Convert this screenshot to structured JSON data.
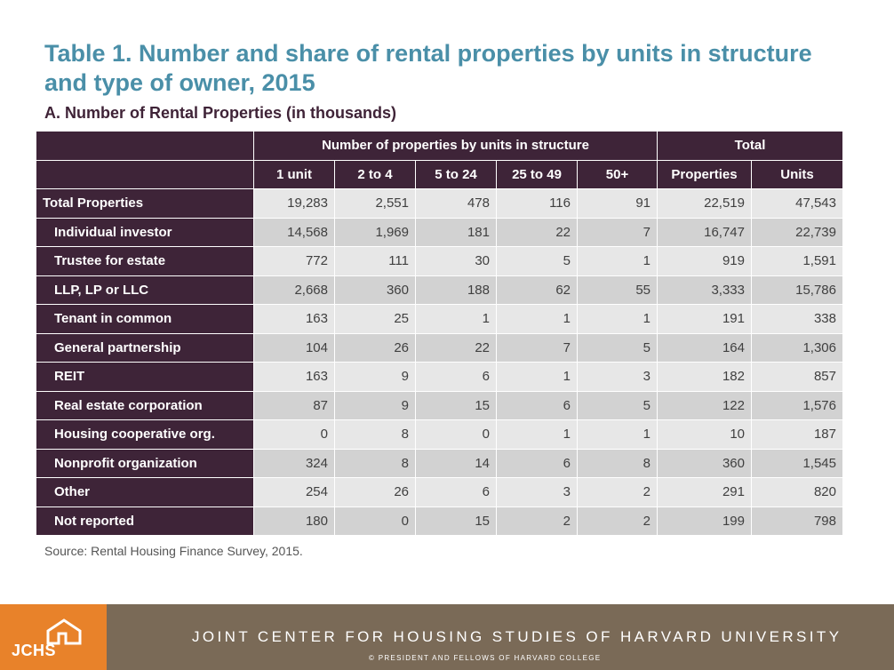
{
  "title": "Table 1. Number and share of rental properties by units in structure and type of owner, 2015",
  "subtitle": "A. Number of Rental Properties (in thousands)",
  "table": {
    "group_headers": {
      "units_in_structure": "Number of properties by units in structure",
      "total": "Total"
    },
    "columns": [
      "1 unit",
      "2 to 4",
      "5 to 24",
      "25 to 49",
      "50+",
      "Properties",
      "Units"
    ],
    "rows": [
      {
        "label": "Total Properties",
        "values": [
          "19,283",
          "2,551",
          "478",
          "116",
          "91",
          "22,519",
          "47,543"
        ]
      },
      {
        "label": "Individual investor",
        "values": [
          "14,568",
          "1,969",
          "181",
          "22",
          "7",
          "16,747",
          "22,739"
        ]
      },
      {
        "label": "Trustee for estate",
        "values": [
          "772",
          "111",
          "30",
          "5",
          "1",
          "919",
          "1,591"
        ]
      },
      {
        "label": "LLP, LP or LLC",
        "values": [
          "2,668",
          "360",
          "188",
          "62",
          "55",
          "3,333",
          "15,786"
        ]
      },
      {
        "label": "Tenant in common",
        "values": [
          "163",
          "25",
          "1",
          "1",
          "1",
          "191",
          "338"
        ]
      },
      {
        "label": "General partnership",
        "values": [
          "104",
          "26",
          "22",
          "7",
          "5",
          "164",
          "1,306"
        ]
      },
      {
        "label": "REIT",
        "values": [
          "163",
          "9",
          "6",
          "1",
          "3",
          "182",
          "857"
        ]
      },
      {
        "label": "Real estate corporation",
        "values": [
          "87",
          "9",
          "15",
          "6",
          "5",
          "122",
          "1,576"
        ]
      },
      {
        "label": "Housing cooperative org.",
        "values": [
          "0",
          "8",
          "0",
          "1",
          "1",
          "10",
          "187"
        ]
      },
      {
        "label": "Nonprofit organization",
        "values": [
          "324",
          "8",
          "14",
          "6",
          "8",
          "360",
          "1,545"
        ]
      },
      {
        "label": "Other",
        "values": [
          "254",
          "26",
          "6",
          "3",
          "2",
          "291",
          "820"
        ]
      },
      {
        "label": "Not reported",
        "values": [
          "180",
          "0",
          "15",
          "2",
          "2",
          "199",
          "798"
        ]
      }
    ]
  },
  "source": "Source: Rental Housing Finance Survey, 2015.",
  "footer": {
    "logo_text": "JCHS",
    "org_name": "JOINT CENTER FOR HOUSING STUDIES OF HARVARD UNIVERSITY",
    "copyright": "© PRESIDENT AND FELLOWS OF HARVARD COLLEGE"
  },
  "colors": {
    "title": "#4a8fa8",
    "header_bg": "#3e2438",
    "row_odd": "#e7e7e7",
    "row_even": "#d2d2d2",
    "footer_bg": "#7a6a57",
    "logo_bg": "#e8822a"
  }
}
